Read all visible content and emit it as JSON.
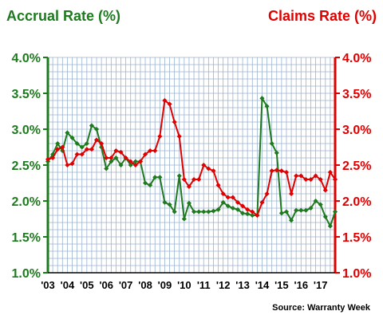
{
  "colors": {
    "accrual": "#1e7a1e",
    "claims": "#e00000",
    "grid": "#9ab3cf",
    "plot_bg": "#ffffff"
  },
  "left_title": "Accrual Rate (%)",
  "right_title": "Claims Rate (%)",
  "source": "Source: Warranty Week",
  "chart_data": {
    "type": "line",
    "xlim": [
      2003.0,
      2017.75
    ],
    "ylim": [
      1.0,
      4.0
    ],
    "y_ticks": [
      "1.0%",
      "1.5%",
      "2.0%",
      "2.5%",
      "3.0%",
      "3.5%",
      "4.0%"
    ],
    "y_tick_values": [
      1.0,
      1.5,
      2.0,
      2.5,
      3.0,
      3.5,
      4.0
    ],
    "x_ticks": [
      "'03",
      "'04",
      "'05",
      "'06",
      "'07",
      "'08",
      "'09",
      "'10",
      "'11",
      "'12",
      "'13",
      "'14",
      "'15",
      "'16",
      "'17"
    ],
    "x_tick_values": [
      2003,
      2004,
      2005,
      2006,
      2007,
      2008,
      2009,
      2010,
      2011,
      2012,
      2013,
      2014,
      2015,
      2016,
      2017
    ],
    "grid": true,
    "series": [
      {
        "name": "Accrual Rate (%)",
        "axis": "left",
        "x": [
          2003.0,
          2003.25,
          2003.5,
          2003.75,
          2004.0,
          2004.25,
          2004.5,
          2004.75,
          2005.0,
          2005.25,
          2005.5,
          2005.75,
          2006.0,
          2006.25,
          2006.5,
          2006.75,
          2007.0,
          2007.25,
          2007.5,
          2007.75,
          2008.0,
          2008.25,
          2008.5,
          2008.75,
          2009.0,
          2009.25,
          2009.5,
          2009.75,
          2010.0,
          2010.25,
          2010.5,
          2010.75,
          2011.0,
          2011.25,
          2011.5,
          2011.75,
          2012.0,
          2012.25,
          2012.5,
          2012.75,
          2013.0,
          2013.25,
          2013.5,
          2013.75,
          2014.0,
          2014.25,
          2014.5,
          2014.75,
          2015.0,
          2015.25,
          2015.5,
          2015.75,
          2016.0,
          2016.25,
          2016.5,
          2016.75,
          2017.0,
          2017.25,
          2017.5,
          2017.75
        ],
        "values": [
          2.55,
          2.65,
          2.8,
          2.7,
          2.95,
          2.88,
          2.8,
          2.75,
          2.8,
          3.05,
          3.0,
          2.75,
          2.45,
          2.55,
          2.6,
          2.5,
          2.6,
          2.5,
          2.55,
          2.55,
          2.25,
          2.22,
          2.33,
          2.33,
          1.98,
          1.95,
          1.85,
          2.35,
          1.75,
          1.97,
          1.85,
          1.85,
          1.85,
          1.85,
          1.86,
          1.88,
          1.98,
          1.93,
          1.9,
          1.88,
          1.83,
          1.82,
          1.8,
          1.8,
          3.43,
          3.32,
          2.8,
          2.67,
          1.83,
          1.85,
          1.73,
          1.87,
          1.87,
          1.87,
          1.9,
          2.0,
          1.95,
          1.78,
          1.65,
          1.85
        ]
      },
      {
        "name": "Claims Rate (%)",
        "axis": "right",
        "x": [
          2003.0,
          2003.25,
          2003.5,
          2003.75,
          2004.0,
          2004.25,
          2004.5,
          2004.75,
          2005.0,
          2005.25,
          2005.5,
          2005.75,
          2006.0,
          2006.25,
          2006.5,
          2006.75,
          2007.0,
          2007.25,
          2007.5,
          2007.75,
          2008.0,
          2008.25,
          2008.5,
          2008.75,
          2009.0,
          2009.25,
          2009.5,
          2009.75,
          2010.0,
          2010.25,
          2010.5,
          2010.75,
          2011.0,
          2011.25,
          2011.5,
          2011.75,
          2012.0,
          2012.25,
          2012.5,
          2012.75,
          2013.0,
          2013.25,
          2013.5,
          2013.75,
          2014.0,
          2014.25,
          2014.5,
          2014.75,
          2015.0,
          2015.25,
          2015.5,
          2015.75,
          2016.0,
          2016.25,
          2016.5,
          2016.75,
          2017.0,
          2017.25,
          2017.5,
          2017.75
        ],
        "values": [
          2.58,
          2.6,
          2.72,
          2.75,
          2.5,
          2.52,
          2.65,
          2.65,
          2.72,
          2.72,
          2.85,
          2.8,
          2.6,
          2.6,
          2.7,
          2.68,
          2.6,
          2.55,
          2.5,
          2.55,
          2.65,
          2.7,
          2.7,
          2.9,
          3.4,
          3.35,
          3.1,
          2.9,
          2.3,
          2.2,
          2.3,
          2.3,
          2.5,
          2.45,
          2.42,
          2.22,
          2.1,
          2.05,
          2.05,
          1.98,
          1.93,
          1.88,
          1.85,
          1.8,
          1.98,
          2.1,
          2.42,
          2.43,
          2.42,
          2.4,
          2.1,
          2.35,
          2.35,
          2.3,
          2.3,
          2.35,
          2.3,
          2.15,
          2.4,
          2.3
        ]
      }
    ]
  }
}
